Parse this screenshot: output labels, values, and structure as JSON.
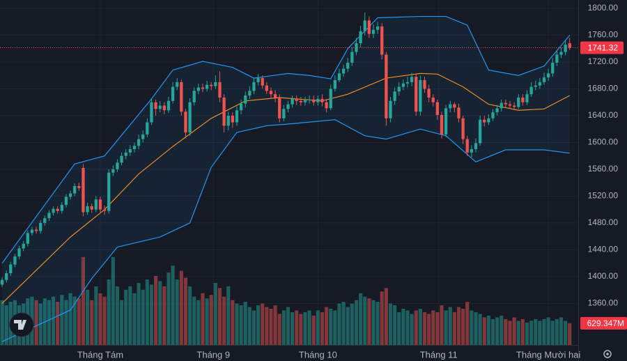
{
  "chart_data": {
    "type": "candlestick",
    "xlim": [
      -0.5,
      135
    ],
    "ylim": [
      1298,
      1812.5
    ],
    "yticks": [
      {
        "value": 1360,
        "label": "1360.00"
      },
      {
        "value": 1400,
        "label": "1400.00"
      },
      {
        "value": 1440,
        "label": "1440.00"
      },
      {
        "value": 1480,
        "label": "1480.00"
      },
      {
        "value": 1520,
        "label": "1520.00"
      },
      {
        "value": 1560,
        "label": "1560.00"
      },
      {
        "value": 1600,
        "label": "1600.00"
      },
      {
        "value": 1640,
        "label": "1640.00"
      },
      {
        "value": 1680,
        "label": "1680.00"
      },
      {
        "value": 1720,
        "label": "1720.00"
      },
      {
        "value": 1760,
        "label": "1760.00"
      },
      {
        "value": 1800,
        "label": "1800.00"
      }
    ],
    "xticks": [
      {
        "value": 23,
        "label": "Tháng Tám"
      },
      {
        "value": 49.5,
        "label": "Tháng 9"
      },
      {
        "value": 74,
        "label": "Tháng 10"
      },
      {
        "value": 102.3,
        "label": "Tháng 11"
      },
      {
        "value": 128,
        "label": "Tháng Mười hai"
      }
    ],
    "grid": true,
    "up_color": "#26a69a",
    "down_color": "#ef5350",
    "open": [
      1388,
      1395,
      1405,
      1418,
      1430,
      1442,
      1449,
      1465,
      1470,
      1468,
      1480,
      1487,
      1495,
      1501,
      1498,
      1507,
      1519,
      1524,
      1535,
      1562,
      1496,
      1505,
      1500,
      1515,
      1500,
      1498,
      1555,
      1560,
      1570,
      1580,
      1585,
      1590,
      1595,
      1605,
      1612,
      1630,
      1660,
      1650,
      1655,
      1648,
      1662,
      1683,
      1690,
      1646,
      1615,
      1660,
      1677,
      1682,
      1680,
      1686,
      1684,
      1690,
      1667,
      1625,
      1640,
      1630,
      1648,
      1658,
      1670,
      1677,
      1690,
      1696,
      1685,
      1677,
      1672,
      1667,
      1636,
      1650,
      1657,
      1665,
      1662,
      1660,
      1663,
      1664,
      1660,
      1665,
      1660,
      1651,
      1680,
      1693,
      1703,
      1710,
      1719,
      1735,
      1748,
      1766,
      1782,
      1762,
      1768,
      1773,
      1731,
      1636,
      1662,
      1676,
      1683,
      1688,
      1690,
      1698,
      1646,
      1693,
      1680,
      1667,
      1660,
      1641,
      1612,
      1651,
      1657,
      1652,
      1636,
      1605,
      1585,
      1590,
      1599,
      1634,
      1630,
      1636,
      1645,
      1651,
      1659,
      1657,
      1655,
      1653,
      1667,
      1660,
      1672,
      1683,
      1685,
      1690,
      1697,
      1703,
      1719,
      1731,
      1735,
      1748
    ],
    "high": [
      1399,
      1409,
      1422,
      1434,
      1446,
      1453,
      1469,
      1474,
      1474,
      1484,
      1491,
      1499,
      1505,
      1505,
      1511,
      1523,
      1528,
      1539,
      1540,
      1568,
      1510,
      1509,
      1520,
      1519,
      1506,
      1560,
      1566,
      1575,
      1585,
      1590,
      1596,
      1600,
      1612,
      1618,
      1636,
      1666,
      1664,
      1662,
      1660,
      1668,
      1690,
      1696,
      1694,
      1650,
      1666,
      1682,
      1688,
      1688,
      1692,
      1690,
      1700,
      1706,
      1672,
      1646,
      1645,
      1654,
      1664,
      1676,
      1684,
      1696,
      1702,
      1700,
      1690,
      1682,
      1678,
      1672,
      1656,
      1662,
      1670,
      1670,
      1668,
      1668,
      1670,
      1670,
      1670,
      1672,
      1665,
      1686,
      1700,
      1710,
      1716,
      1726,
      1742,
      1756,
      1774,
      1794,
      1788,
      1776,
      1780,
      1778,
      1735,
      1668,
      1682,
      1690,
      1694,
      1698,
      1704,
      1702,
      1700,
      1698,
      1686,
      1672,
      1664,
      1646,
      1656,
      1662,
      1660,
      1658,
      1640,
      1610,
      1596,
      1606,
      1640,
      1640,
      1642,
      1650,
      1656,
      1664,
      1664,
      1662,
      1660,
      1672,
      1672,
      1678,
      1690,
      1692,
      1696,
      1704,
      1710,
      1726,
      1738,
      1742,
      1752,
      1756
    ],
    "low": [
      1384,
      1391,
      1401,
      1414,
      1426,
      1438,
      1445,
      1461,
      1464,
      1464,
      1476,
      1483,
      1491,
      1494,
      1494,
      1503,
      1515,
      1520,
      1528,
      1490,
      1492,
      1495,
      1496,
      1494,
      1492,
      1494,
      1550,
      1556,
      1566,
      1575,
      1580,
      1585,
      1590,
      1600,
      1608,
      1626,
      1640,
      1645,
      1642,
      1644,
      1658,
      1678,
      1640,
      1606,
      1610,
      1655,
      1672,
      1675,
      1676,
      1678,
      1680,
      1660,
      1615,
      1618,
      1622,
      1625,
      1642,
      1652,
      1665,
      1672,
      1685,
      1680,
      1672,
      1666,
      1660,
      1630,
      1632,
      1645,
      1652,
      1656,
      1655,
      1655,
      1658,
      1655,
      1655,
      1654,
      1645,
      1648,
      1676,
      1690,
      1698,
      1705,
      1714,
      1730,
      1742,
      1760,
      1756,
      1756,
      1762,
      1724,
      1625,
      1630,
      1656,
      1670,
      1678,
      1682,
      1684,
      1640,
      1640,
      1674,
      1660,
      1654,
      1634,
      1606,
      1608,
      1645,
      1645,
      1630,
      1598,
      1580,
      1578,
      1585,
      1595,
      1624,
      1626,
      1632,
      1640,
      1646,
      1652,
      1650,
      1648,
      1650,
      1655,
      1656,
      1668,
      1678,
      1680,
      1686,
      1692,
      1698,
      1714,
      1726,
      1730,
      1738
    ],
    "close": [
      1395,
      1405,
      1418,
      1430,
      1442,
      1449,
      1465,
      1470,
      1468,
      1480,
      1487,
      1495,
      1501,
      1498,
      1507,
      1519,
      1524,
      1535,
      1532,
      1496,
      1505,
      1500,
      1515,
      1500,
      1498,
      1555,
      1560,
      1570,
      1580,
      1585,
      1590,
      1595,
      1605,
      1612,
      1630,
      1660,
      1650,
      1655,
      1648,
      1662,
      1683,
      1690,
      1646,
      1615,
      1660,
      1677,
      1682,
      1680,
      1686,
      1684,
      1690,
      1667,
      1625,
      1640,
      1630,
      1648,
      1658,
      1670,
      1677,
      1690,
      1696,
      1685,
      1677,
      1672,
      1667,
      1636,
      1650,
      1657,
      1665,
      1662,
      1660,
      1663,
      1664,
      1660,
      1665,
      1660,
      1651,
      1680,
      1693,
      1703,
      1710,
      1719,
      1735,
      1748,
      1766,
      1782,
      1762,
      1768,
      1773,
      1731,
      1636,
      1662,
      1676,
      1683,
      1688,
      1690,
      1698,
      1646,
      1693,
      1680,
      1667,
      1660,
      1641,
      1612,
      1651,
      1657,
      1652,
      1636,
      1605,
      1585,
      1590,
      1599,
      1634,
      1630,
      1636,
      1645,
      1651,
      1659,
      1657,
      1655,
      1653,
      1667,
      1660,
      1672,
      1683,
      1685,
      1690,
      1697,
      1703,
      1719,
      1731,
      1735,
      1746,
      1741.32
    ],
    "volume_lim": [
      0,
      10000
    ],
    "volume": [
      1300,
      1150,
      1250,
      1300,
      1150,
      1200,
      1350,
      1400,
      1300,
      1200,
      1350,
      1300,
      1400,
      1250,
      1450,
      1300,
      1500,
      1400,
      1350,
      2550,
      1600,
      1300,
      1700,
      1500,
      1400,
      1900,
      2550,
      1700,
      1300,
      1600,
      1700,
      1500,
      1800,
      1600,
      1900,
      1750,
      2000,
      1850,
      1700,
      2100,
      2300,
      1900,
      2150,
      1950,
      1700,
      1400,
      1300,
      1500,
      1350,
      1450,
      1800,
      1650,
      1400,
      1700,
      1300,
      1200,
      1150,
      1250,
      1100,
      1000,
      1150,
      1200,
      1100,
      1050,
      1150,
      900,
      1000,
      1100,
      950,
      1000,
      900,
      950,
      1000,
      850,
      1000,
      950,
      1100,
      1050,
      1000,
      1200,
      1250,
      1100,
      1200,
      1300,
      1500,
      1400,
      1350,
      1300,
      1250,
      1550,
      1650,
      1200,
      1150,
      950,
      1050,
      1000,
      900,
      1000,
      1050,
      950,
      900,
      1000,
      950,
      1150,
      1000,
      1100,
      950,
      1100,
      1050,
      1250,
      1000,
      950,
      900,
      800,
      850,
      750,
      800,
      850,
      750,
      700,
      800,
      700,
      750,
      650,
      700,
      750,
      700,
      750,
      800,
      700,
      750,
      800,
      700,
      629.347
    ],
    "last_volume_label": "629.347M",
    "bands": [
      {
        "color": "#2196f3",
        "x": [
          0,
          17,
          24,
          35,
          40,
          47,
          54,
          59,
          67,
          72,
          77,
          81,
          88,
          98,
          104,
          109,
          114,
          121,
          127,
          133
        ],
        "values": [
          1420,
          1568,
          1580,
          1665,
          1708,
          1721,
          1712,
          1696,
          1703,
          1700,
          1695,
          1740,
          1786,
          1788,
          1788,
          1775,
          1708,
          1700,
          1714,
          1760
        ]
      },
      {
        "color": "#f08a24",
        "x": [
          0,
          16,
          24,
          32,
          40,
          49,
          57,
          65,
          75,
          81,
          90,
          98,
          102,
          108,
          114,
          121,
          127,
          133
        ],
        "values": [
          1360,
          1459,
          1500,
          1553,
          1594,
          1636,
          1662,
          1667,
          1662,
          1672,
          1696,
          1703,
          1702,
          1683,
          1657,
          1648,
          1650,
          1670
        ]
      },
      {
        "color": "#2196f3",
        "x": [
          0,
          16,
          21,
          27,
          37,
          44,
          49,
          55,
          62,
          68,
          78,
          85,
          90,
          98,
          104,
          111,
          118,
          127,
          133
        ],
        "values": [
          1303,
          1350,
          1397,
          1444,
          1459,
          1480,
          1563,
          1615,
          1625,
          1628,
          1634,
          1610,
          1605,
          1620,
          1610,
          1571,
          1589,
          1589,
          1584
        ]
      }
    ]
  }
}
